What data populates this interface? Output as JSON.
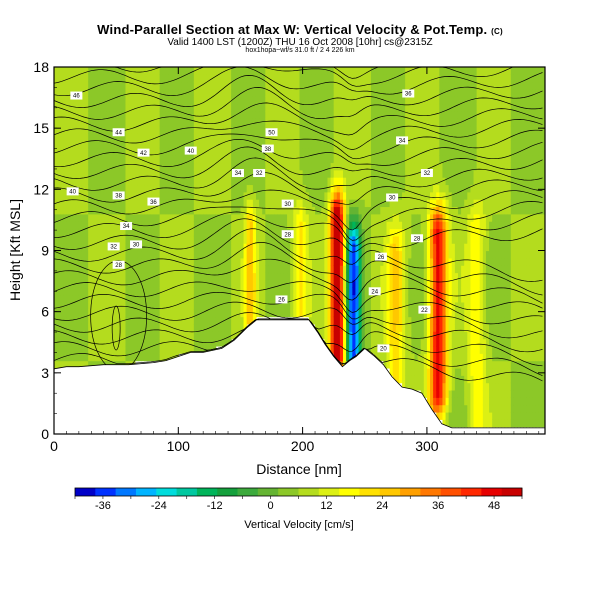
{
  "chart_data": {
    "type": "heatmap",
    "title": "Wind-Parallel Section at Max W: Vertical Velocity & Pot.Temp.",
    "title_mark": "(C)",
    "subtitle": "Valid 1400 LST (1200Z) THU 16 Oct 2008 [10hr] cs@2315Z",
    "subtitle2": "hox1hopa~wf/s 31.0 ft / 2 4 226 km",
    "xlabel": "Distance [nm]",
    "ylabel": "Height [Kft MSL]",
    "xlim": [
      0,
      395
    ],
    "ylim": [
      0,
      18
    ],
    "xticks": [
      "0",
      "100",
      "200",
      "300"
    ],
    "xtick_values": [
      0,
      100,
      200,
      300
    ],
    "yticks": [
      "0",
      "3",
      "6",
      "9",
      "12",
      "15",
      "18"
    ],
    "ytick_values": [
      0,
      3,
      6,
      9,
      12,
      15,
      18
    ],
    "colorbar": {
      "label": "Vertical Velocity [cm/s]",
      "ticks": [
        "-36",
        "-24",
        "-12",
        "0",
        "12",
        "24",
        "36",
        "48"
      ],
      "tick_values": [
        -36,
        -24,
        -12,
        0,
        12,
        24,
        36,
        48
      ],
      "range": [
        -42,
        54
      ],
      "colors": [
        "#0000c8",
        "#0032ff",
        "#0078ff",
        "#00b4ff",
        "#00dcdc",
        "#00c8a0",
        "#00b45a",
        "#14a03c",
        "#3caa3c",
        "#64b432",
        "#8cc828",
        "#b4dc1e",
        "#dcf014",
        "#ffff00",
        "#ffe100",
        "#ffc800",
        "#ffa000",
        "#ff7800",
        "#ff5000",
        "#ff2800",
        "#e60000",
        "#c80000"
      ]
    },
    "terrain_profile": [
      {
        "x": 0,
        "h": 3.2
      },
      {
        "x": 10,
        "h": 3.3
      },
      {
        "x": 20,
        "h": 3.3
      },
      {
        "x": 40,
        "h": 3.4
      },
      {
        "x": 60,
        "h": 3.4
      },
      {
        "x": 80,
        "h": 3.5
      },
      {
        "x": 90,
        "h": 3.6
      },
      {
        "x": 100,
        "h": 3.8
      },
      {
        "x": 110,
        "h": 4.0
      },
      {
        "x": 120,
        "h": 4.0
      },
      {
        "x": 135,
        "h": 4.2
      },
      {
        "x": 145,
        "h": 4.6
      },
      {
        "x": 155,
        "h": 5.2
      },
      {
        "x": 163,
        "h": 5.6
      },
      {
        "x": 175,
        "h": 5.6
      },
      {
        "x": 190,
        "h": 5.6
      },
      {
        "x": 205,
        "h": 5.6
      },
      {
        "x": 212,
        "h": 5.0
      },
      {
        "x": 218,
        "h": 4.4
      },
      {
        "x": 225,
        "h": 3.8
      },
      {
        "x": 232,
        "h": 3.3
      },
      {
        "x": 238,
        "h": 3.6
      },
      {
        "x": 243,
        "h": 3.8
      },
      {
        "x": 250,
        "h": 4.2
      },
      {
        "x": 258,
        "h": 3.8
      },
      {
        "x": 265,
        "h": 3.4
      },
      {
        "x": 272,
        "h": 2.8
      },
      {
        "x": 280,
        "h": 2.3
      },
      {
        "x": 288,
        "h": 2.2
      },
      {
        "x": 296,
        "h": 2.0
      },
      {
        "x": 304,
        "h": 1.2
      },
      {
        "x": 312,
        "h": 0.5
      },
      {
        "x": 320,
        "h": 0.3
      },
      {
        "x": 340,
        "h": 0.3
      },
      {
        "x": 370,
        "h": 0.3
      },
      {
        "x": 395,
        "h": 0.3
      }
    ],
    "updraft_cores": [
      {
        "x": 228,
        "zmin": 4,
        "zmax": 10.5,
        "w": 54,
        "width": 4
      },
      {
        "x": 309,
        "zmin": 2,
        "zmax": 9.8,
        "w": 42,
        "width": 5
      },
      {
        "x": 158,
        "zmin": 5.5,
        "zmax": 10,
        "w": 18,
        "width": 3
      },
      {
        "x": 198,
        "zmin": 5.6,
        "zmax": 10,
        "w": 14,
        "width": 4
      },
      {
        "x": 275,
        "zmin": 3,
        "zmax": 9,
        "w": 16,
        "width": 5
      },
      {
        "x": 340,
        "zmin": 0.5,
        "zmax": 10,
        "w": 12,
        "width": 5
      }
    ],
    "downdraft_cores": [
      {
        "x": 241,
        "zmin": 3.8,
        "zmax": 9,
        "w": -40,
        "width": 4
      }
    ],
    "contour_labels": [
      {
        "x": 18,
        "y": 16.6,
        "text": "46"
      },
      {
        "x": 52,
        "y": 14.8,
        "text": "44"
      },
      {
        "x": 72,
        "y": 13.8,
        "text": "42"
      },
      {
        "x": 110,
        "y": 13.9,
        "text": "40"
      },
      {
        "x": 175,
        "y": 14.8,
        "text": "50"
      },
      {
        "x": 172,
        "y": 14.0,
        "text": "38"
      },
      {
        "x": 15,
        "y": 11.9,
        "text": "40"
      },
      {
        "x": 52,
        "y": 11.7,
        "text": "38"
      },
      {
        "x": 80,
        "y": 11.4,
        "text": "36"
      },
      {
        "x": 148,
        "y": 12.8,
        "text": "34"
      },
      {
        "x": 165,
        "y": 12.8,
        "text": "32"
      },
      {
        "x": 188,
        "y": 11.3,
        "text": "30"
      },
      {
        "x": 58,
        "y": 10.2,
        "text": "34"
      },
      {
        "x": 48,
        "y": 9.2,
        "text": "32"
      },
      {
        "x": 66,
        "y": 9.3,
        "text": "30"
      },
      {
        "x": 52,
        "y": 8.3,
        "text": "28"
      },
      {
        "x": 188,
        "y": 9.8,
        "text": "28"
      },
      {
        "x": 183,
        "y": 6.6,
        "text": "26"
      },
      {
        "x": 285,
        "y": 16.7,
        "text": "36"
      },
      {
        "x": 280,
        "y": 14.4,
        "text": "34"
      },
      {
        "x": 300,
        "y": 12.8,
        "text": "32"
      },
      {
        "x": 272,
        "y": 11.6,
        "text": "30"
      },
      {
        "x": 292,
        "y": 9.6,
        "text": "28"
      },
      {
        "x": 263,
        "y": 8.7,
        "text": "26"
      },
      {
        "x": 258,
        "y": 7.0,
        "text": "24"
      },
      {
        "x": 298,
        "y": 6.1,
        "text": "22"
      },
      {
        "x": 265,
        "y": 4.2,
        "text": "20"
      }
    ]
  }
}
